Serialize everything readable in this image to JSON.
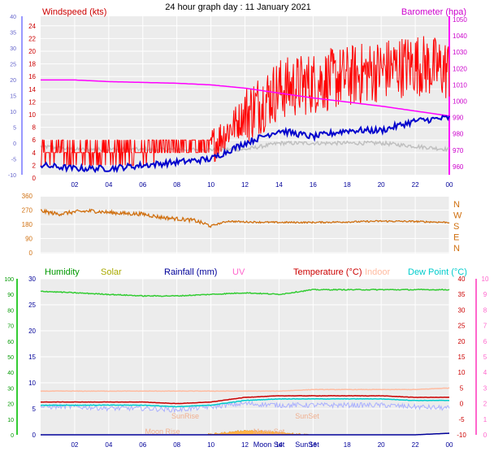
{
  "title": "24 hour graph day : 11 January 2021",
  "colors": {
    "windspeed": "#ff0000",
    "windspeed_avg": "#0000cc",
    "gust_ref": "#c0c0c0",
    "barometer": "#ff00ff",
    "direction": "#d07010",
    "humidity": "#33cc33",
    "solar": "#cccc00",
    "rainfall": "#000099",
    "uv": "#ff66cc",
    "temperature": "#cc0000",
    "indoor": "#ffbba0",
    "dewpoint": "#00cccc",
    "panel_bg": "#ececec",
    "grid": "#ffffff"
  },
  "x_ticks": [
    "02",
    "04",
    "06",
    "08",
    "10",
    "12",
    "14",
    "16",
    "18",
    "20",
    "22",
    "00"
  ],
  "top_panel": {
    "left_label": "Windspeed (kts)",
    "right_label": "Barometer (hpa)",
    "left_ticks": [
      "0",
      "2",
      "4",
      "6",
      "8",
      "10",
      "12",
      "14",
      "16",
      "18",
      "20",
      "22",
      "24"
    ],
    "left_outer_ticks": [
      "-10",
      "-5",
      "0",
      "5",
      "10",
      "15",
      "20",
      "25",
      "30",
      "35",
      "40"
    ],
    "right_ticks": [
      "960",
      "970",
      "980",
      "990",
      "1000",
      "1010",
      "1020",
      "1030",
      "1040",
      "1050"
    ]
  },
  "mid_panel": {
    "left_ticks": [
      "0",
      "90",
      "180",
      "270",
      "360"
    ],
    "right_labels": [
      "N",
      "E",
      "S",
      "W",
      "N"
    ]
  },
  "bottom_panel": {
    "labels": {
      "humidity": "Humidity",
      "solar": "Solar",
      "rainfall": "Rainfall (mm)",
      "uv": "UV",
      "temperature": "Temperature (°C)",
      "indoor": "Indoor",
      "dewpoint": "Dew Point (°C)"
    },
    "humidity_ticks": [
      "0",
      "10",
      "20",
      "30",
      "40",
      "50",
      "60",
      "70",
      "80",
      "90",
      "100"
    ],
    "rain_ticks": [
      "0",
      "5",
      "10",
      "15",
      "20",
      "25",
      "30"
    ],
    "temp_ticks": [
      "-10",
      "-5",
      "0",
      "5",
      "10",
      "15",
      "20",
      "25",
      "30",
      "35",
      "40"
    ],
    "uv_ticks": [
      "0",
      "1",
      "2",
      "3",
      "4",
      "5",
      "6",
      "7",
      "8",
      "9",
      "10"
    ],
    "annotations": {
      "sunrise": "SunRise",
      "sunset": "SunSet",
      "moonrise": "Moon Rise",
      "moonset": "Moon Set"
    }
  },
  "chart_data": [
    {
      "type": "line",
      "title": "24 hour graph day : 11 January 2021",
      "x": [
        0,
        2,
        4,
        6,
        8,
        10,
        12,
        14,
        16,
        18,
        20,
        22,
        24
      ],
      "xlabel": "",
      "ylabel": "Windspeed (kts)",
      "ylim": [
        0,
        25
      ],
      "y2label": "Barometer (hpa)",
      "y2lim": [
        955,
        1052
      ],
      "series": [
        {
          "name": "Windspeed (kts)",
          "kind": "gust",
          "values": [
            4,
            4,
            4,
            4,
            5,
            5,
            10,
            14,
            15,
            16,
            17,
            18,
            17
          ]
        },
        {
          "name": "Windspeed (kts)",
          "kind": "average",
          "values": [
            2,
            1.5,
            1.5,
            2,
            2.5,
            3,
            5.5,
            7.5,
            6.5,
            7.5,
            7.5,
            9,
            9.5
          ]
        },
        {
          "name": "",
          "kind": "reference",
          "values": [
            5,
            4.5,
            4.5,
            4.5,
            4.5,
            4.5,
            4.5,
            5.5,
            5.5,
            5.5,
            5.5,
            5,
            4.5
          ]
        },
        {
          "name": "Barometer (hpa)",
          "axis": "right",
          "values": [
            1013,
            1013,
            1012,
            1011.5,
            1011,
            1010,
            1008,
            1005,
            1002,
            999.5,
            997,
            994,
            991
          ]
        }
      ]
    },
    {
      "type": "line",
      "xlabel": "",
      "ylabel": "",
      "ylim": [
        0,
        360
      ],
      "x": [
        0,
        1,
        2,
        3,
        4,
        5,
        6,
        7,
        8,
        9,
        10,
        11,
        12,
        14,
        16,
        18,
        20,
        22,
        24
      ],
      "series": [
        {
          "name": "",
          "values": [
            265,
            245,
            258,
            265,
            255,
            248,
            245,
            225,
            215,
            205,
            170,
            200,
            195,
            192,
            192,
            195,
            200,
            198,
            192
          ]
        }
      ]
    },
    {
      "type": "line",
      "xlabel": "",
      "ylabel": "",
      "ylim": [
        -10,
        40
      ],
      "x": [
        0,
        2,
        4,
        6,
        8,
        10,
        12,
        14,
        16,
        18,
        20,
        22,
        24
      ],
      "series": [
        {
          "name": "Humidity",
          "axis": "humidity",
          "ylim": [
            0,
            100
          ],
          "values": [
            92,
            91,
            90,
            89,
            89,
            90,
            91,
            90,
            93,
            93,
            93,
            93,
            93
          ]
        },
        {
          "name": "Indoor",
          "values": [
            4,
            4,
            4,
            4,
            4,
            4,
            4,
            4,
            4.5,
            4.5,
            4.5,
            4.5,
            5
          ]
        },
        {
          "name": "Temperature (°C)",
          "values": [
            0.5,
            0.5,
            0.5,
            0.5,
            0,
            0.5,
            2,
            2.5,
            2.5,
            2.5,
            2.5,
            2,
            2
          ]
        },
        {
          "name": "Dew Point (°C)",
          "values": [
            -0.5,
            -0.5,
            -0.5,
            -0.5,
            -1,
            -0.5,
            1,
            1.5,
            1.5,
            1.5,
            1.5,
            1,
            1
          ]
        },
        {
          "name": "",
          "values": [
            -1,
            -1,
            -1.5,
            -1.5,
            -2,
            -1,
            0,
            -0.5,
            -0.5,
            -0.5,
            -0.5,
            -1,
            -1.5
          ]
        },
        {
          "name": "Solar",
          "axis": "solar",
          "values": [
            0,
            0,
            0,
            0,
            0,
            0.2,
            1.4,
            0.8,
            0,
            0,
            0,
            0,
            0
          ]
        },
        {
          "name": "Rainfall (mm)",
          "axis": "rainfall",
          "ylim": [
            0,
            30
          ],
          "values": [
            0,
            0,
            0,
            0,
            0,
            0,
            0,
            0,
            0,
            0,
            0,
            0,
            0.3
          ]
        }
      ]
    }
  ]
}
